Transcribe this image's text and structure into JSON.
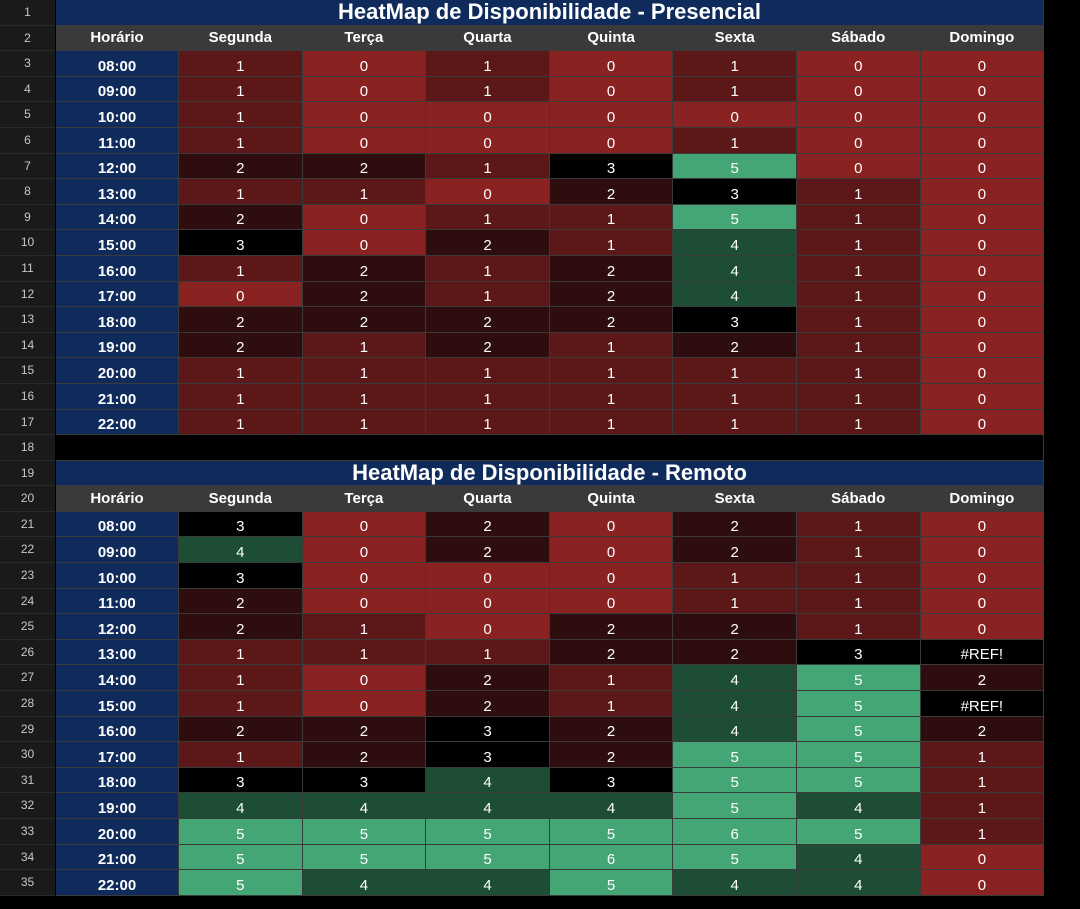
{
  "row_numbers": [
    "1",
    "2",
    "3",
    "4",
    "5",
    "6",
    "7",
    "8",
    "9",
    "10",
    "11",
    "12",
    "13",
    "14",
    "15",
    "16",
    "17",
    "18",
    "19",
    "20",
    "21",
    "22",
    "23",
    "24",
    "25",
    "26",
    "27",
    "28",
    "29",
    "30",
    "31",
    "32",
    "33",
    "34",
    "35"
  ],
  "headers": [
    "Horário",
    "Segunda",
    "Terça",
    "Quarta",
    "Quinta",
    "Sexta",
    "Sábado",
    "Domingo"
  ],
  "presencial": {
    "title": "HeatMap de Disponibilidade - Presencial",
    "rows": [
      {
        "time": "08:00",
        "values": [
          "1",
          "0",
          "1",
          "0",
          "1",
          "0",
          "0"
        ]
      },
      {
        "time": "09:00",
        "values": [
          "1",
          "0",
          "1",
          "0",
          "1",
          "0",
          "0"
        ]
      },
      {
        "time": "10:00",
        "values": [
          "1",
          "0",
          "0",
          "0",
          "0",
          "0",
          "0"
        ]
      },
      {
        "time": "11:00",
        "values": [
          "1",
          "0",
          "0",
          "0",
          "1",
          "0",
          "0"
        ]
      },
      {
        "time": "12:00",
        "values": [
          "2",
          "2",
          "1",
          "3",
          "5",
          "0",
          "0"
        ]
      },
      {
        "time": "13:00",
        "values": [
          "1",
          "1",
          "0",
          "2",
          "3",
          "1",
          "0"
        ]
      },
      {
        "time": "14:00",
        "values": [
          "2",
          "0",
          "1",
          "1",
          "5",
          "1",
          "0"
        ]
      },
      {
        "time": "15:00",
        "values": [
          "3",
          "0",
          "2",
          "1",
          "4",
          "1",
          "0"
        ]
      },
      {
        "time": "16:00",
        "values": [
          "1",
          "2",
          "1",
          "2",
          "4",
          "1",
          "0"
        ]
      },
      {
        "time": "17:00",
        "values": [
          "0",
          "2",
          "1",
          "2",
          "4",
          "1",
          "0"
        ]
      },
      {
        "time": "18:00",
        "values": [
          "2",
          "2",
          "2",
          "2",
          "3",
          "1",
          "0"
        ]
      },
      {
        "time": "19:00",
        "values": [
          "2",
          "1",
          "2",
          "1",
          "2",
          "1",
          "0"
        ]
      },
      {
        "time": "20:00",
        "values": [
          "1",
          "1",
          "1",
          "1",
          "1",
          "1",
          "0"
        ]
      },
      {
        "time": "21:00",
        "values": [
          "1",
          "1",
          "1",
          "1",
          "1",
          "1",
          "0"
        ]
      },
      {
        "time": "22:00",
        "values": [
          "1",
          "1",
          "1",
          "1",
          "1",
          "1",
          "0"
        ]
      }
    ]
  },
  "remoto": {
    "title": "HeatMap de Disponibilidade - Remoto",
    "rows": [
      {
        "time": "08:00",
        "values": [
          "3",
          "0",
          "2",
          "0",
          "2",
          "1",
          "0"
        ]
      },
      {
        "time": "09:00",
        "values": [
          "4",
          "0",
          "2",
          "0",
          "2",
          "1",
          "0"
        ]
      },
      {
        "time": "10:00",
        "values": [
          "3",
          "0",
          "0",
          "0",
          "1",
          "1",
          "0"
        ]
      },
      {
        "time": "11:00",
        "values": [
          "2",
          "0",
          "0",
          "0",
          "1",
          "1",
          "0"
        ]
      },
      {
        "time": "12:00",
        "values": [
          "2",
          "1",
          "0",
          "2",
          "2",
          "1",
          "0"
        ]
      },
      {
        "time": "13:00",
        "values": [
          "1",
          "1",
          "1",
          "2",
          "2",
          "3",
          "#REF!"
        ]
      },
      {
        "time": "14:00",
        "values": [
          "1",
          "0",
          "2",
          "1",
          "4",
          "5",
          "2"
        ]
      },
      {
        "time": "15:00",
        "values": [
          "1",
          "0",
          "2",
          "1",
          "4",
          "5",
          "#REF!"
        ]
      },
      {
        "time": "16:00",
        "values": [
          "2",
          "2",
          "3",
          "2",
          "4",
          "5",
          "2"
        ]
      },
      {
        "time": "17:00",
        "values": [
          "1",
          "2",
          "3",
          "2",
          "5",
          "5",
          "1"
        ]
      },
      {
        "time": "18:00",
        "values": [
          "3",
          "3",
          "4",
          "3",
          "5",
          "5",
          "1"
        ]
      },
      {
        "time": "19:00",
        "values": [
          "4",
          "4",
          "4",
          "4",
          "5",
          "4",
          "1"
        ]
      },
      {
        "time": "20:00",
        "values": [
          "5",
          "5",
          "5",
          "5",
          "6",
          "5",
          "1"
        ]
      },
      {
        "time": "21:00",
        "values": [
          "5",
          "5",
          "5",
          "6",
          "5",
          "4",
          "0"
        ]
      },
      {
        "time": "22:00",
        "values": [
          "5",
          "4",
          "4",
          "5",
          "4",
          "4",
          "0"
        ]
      }
    ]
  },
  "heat_colors": {
    "0": "#8b2222",
    "1": "#5c1818",
    "2": "#2d0d0d",
    "3": "#000000",
    "4": "#1e4d35",
    "5": "#44a675",
    "6": "#44a675",
    "#REF!": "#000000"
  }
}
